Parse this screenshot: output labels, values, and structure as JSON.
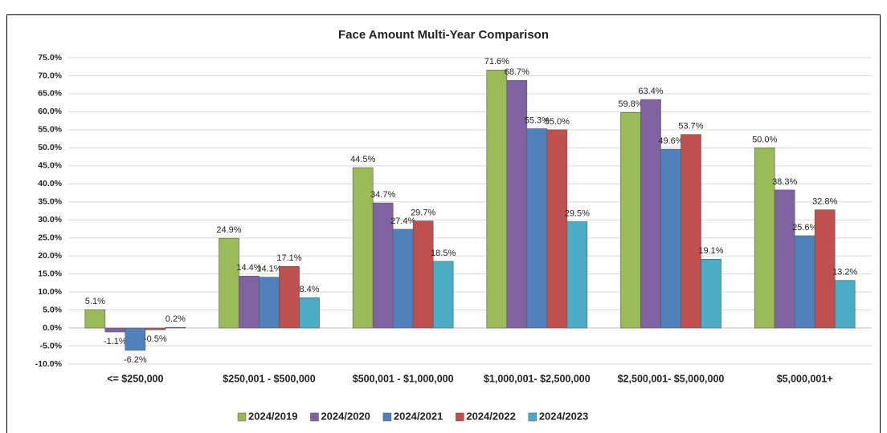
{
  "chart_data": {
    "type": "bar",
    "title": "Face Amount Multi-Year Comparison",
    "categories": [
      "<= $250,000",
      "$250,001 - $500,000",
      "$500,001 - $1,000,000",
      "$1,000,001- $2,500,000",
      "$2,500,001- $5,000,000",
      "$5,000,001+"
    ],
    "series": [
      {
        "name": "2024/2019",
        "color": "#9bbb59",
        "values": [
          5.1,
          24.9,
          44.5,
          71.6,
          59.8,
          50.0
        ],
        "value_labels": [
          "5.1%",
          "24.9%",
          "44.5%",
          "71.6%",
          "59.8%",
          "50.0%"
        ]
      },
      {
        "name": "2024/2020",
        "color": "#8064a2",
        "values": [
          -1.1,
          14.4,
          34.7,
          68.7,
          63.4,
          38.3
        ],
        "value_labels": [
          "-1.1%",
          "14.4%",
          "34.7%",
          "68.7%",
          "63.4%",
          "38.3%"
        ]
      },
      {
        "name": "2024/2021",
        "color": "#4f81bd",
        "values": [
          -6.2,
          14.1,
          27.4,
          55.3,
          49.6,
          25.6
        ],
        "value_labels": [
          "-6.2%",
          "14.1%",
          "27.4%",
          "55.3%",
          "49.6%",
          "25.6%"
        ]
      },
      {
        "name": "2024/2022",
        "color": "#c0504d",
        "values": [
          -0.5,
          17.1,
          29.7,
          55.0,
          53.7,
          32.8
        ],
        "value_labels": [
          "-0.5%",
          "17.1%",
          "29.7%",
          "55.0%",
          "53.7%",
          "32.8%"
        ]
      },
      {
        "name": "2024/2023",
        "color": "#4bacc6",
        "values": [
          0.2,
          8.4,
          18.5,
          29.5,
          19.1,
          13.2
        ],
        "value_labels": [
          "0.2%",
          "8.4%",
          "18.5%",
          "29.5%",
          "19.1%",
          "13.2%"
        ]
      }
    ],
    "ylim": [
      -10,
      75
    ],
    "yticks": [
      {
        "value": -10,
        "label": "-10.0%"
      },
      {
        "value": -5,
        "label": "-5.0%"
      },
      {
        "value": 0,
        "label": "0.0%"
      },
      {
        "value": 5,
        "label": "5.0%"
      },
      {
        "value": 10,
        "label": "10.0%"
      },
      {
        "value": 15,
        "label": "15.0%"
      },
      {
        "value": 20,
        "label": "20.0%"
      },
      {
        "value": 25,
        "label": "25.0%"
      },
      {
        "value": 30,
        "label": "30.0%"
      },
      {
        "value": 35,
        "label": "35.0%"
      },
      {
        "value": 40,
        "label": "40.0%"
      },
      {
        "value": 45,
        "label": "45.0%"
      },
      {
        "value": 50,
        "label": "50.0%"
      },
      {
        "value": 55,
        "label": "55.0%"
      },
      {
        "value": 60,
        "label": "60.0%"
      },
      {
        "value": 65,
        "label": "65.0%"
      },
      {
        "value": 70,
        "label": "70.0%"
      },
      {
        "value": 75,
        "label": "75.0%"
      }
    ],
    "grid": true,
    "legend": "bottom"
  }
}
